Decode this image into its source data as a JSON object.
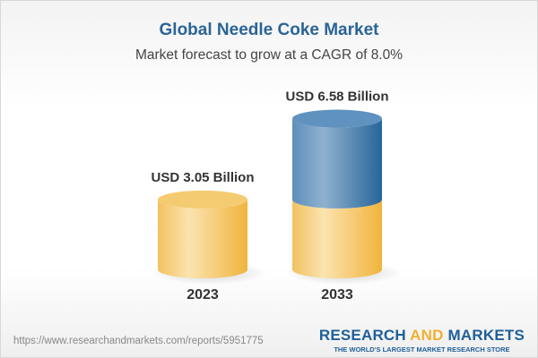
{
  "title": "Global Needle Coke Market",
  "subtitle": "Market forecast to grow at a CAGR of 8.0%",
  "chart_data": {
    "type": "bar",
    "style": "3d-cylinder",
    "categories": [
      "2023",
      "2033"
    ],
    "values": [
      3.05,
      6.58
    ],
    "unit": "USD Billion",
    "data_labels": [
      "USD 3.05 Billion",
      "USD 6.58 Billion"
    ],
    "colors": {
      "base": "#f4c25a",
      "growth": "#3f7fb3"
    }
  },
  "footer": {
    "url": "https://www.researchandmarkets.com/reports/5951775",
    "logo_part1": "RESEARCH ",
    "logo_part2": "AND",
    "logo_part3": " MARKETS",
    "logo_tagline": "THE WORLD'S LARGEST MARKET RESEARCH STORE"
  }
}
